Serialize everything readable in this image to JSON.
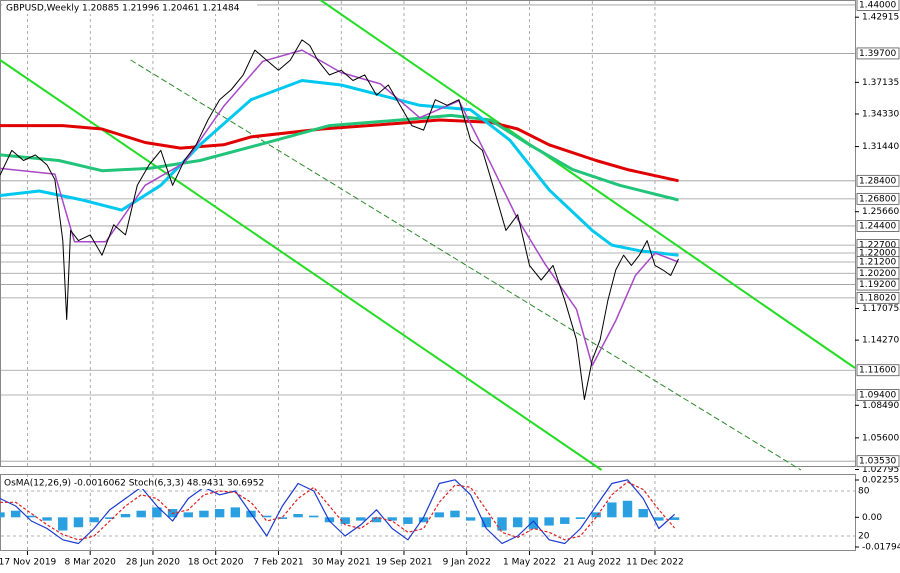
{
  "chart_data": [
    {
      "type": "line",
      "title": "GBPUSD,Weekly  1.20885 1.21996 1.20461 1.21484",
      "xlim": [
        -7,
        211
      ],
      "xticks": [
        {
          "value": 0,
          "label": "17 Nov 2019"
        },
        {
          "value": 16,
          "label": "8 Mar 2020"
        },
        {
          "value": 32,
          "label": "28 Jun 2020"
        },
        {
          "value": 48,
          "label": "18 Oct 2020"
        },
        {
          "value": 64,
          "label": "7 Feb 2021"
        },
        {
          "value": 80,
          "label": "30 May 2021"
        },
        {
          "value": 96,
          "label": "19 Sep 2021"
        },
        {
          "value": 112,
          "label": "9 Jan 2022"
        },
        {
          "value": 128,
          "label": "1 May 2022"
        },
        {
          "value": 144,
          "label": "21 Aug 2022"
        },
        {
          "value": 160,
          "label": "11 Dec 2022"
        }
      ],
      "ylim": [
        1.0275,
        1.4444
      ],
      "yticks": [
        1.42915,
        1.37135,
        {
          "value": 1.3433,
          "label": "1.34330"
        },
        {
          "value": 1.3144,
          "label": "1.31440"
        },
        {
          "value": 1.2566,
          "label": "1.25660"
        },
        1.17075,
        {
          "value": 1.1427,
          "label": "1.14270"
        },
        {
          "value": 1.0849,
          "label": "1.08490"
        },
        {
          "value": 1.056,
          "label": "1.05600"
        },
        1.02795
      ],
      "grid": true,
      "levels": [
        {
          "value": 1.44,
          "label": "1.44000"
        },
        {
          "value": 1.397,
          "label": "1.39700"
        },
        {
          "value": 1.284,
          "label": "1.28400"
        },
        {
          "value": 1.268,
          "label": "1.26800"
        },
        {
          "value": 1.244,
          "label": "1.24400"
        },
        {
          "value": 1.227,
          "label": "1.22700"
        },
        {
          "value": 1.22,
          "label": "1.22000"
        },
        {
          "value": 1.212,
          "label": "1.21200"
        },
        {
          "value": 1.202,
          "label": "1.20200"
        },
        {
          "value": 1.192,
          "label": "1.19200"
        },
        {
          "value": 1.1802,
          "label": "1.18020"
        },
        {
          "value": 1.116,
          "label": "1.11600"
        },
        {
          "value": 1.094,
          "label": "1.09400"
        },
        {
          "value": 1.0353,
          "label": "1.03530"
        }
      ],
      "series": [
        {
          "color": "#e00000",
          "width": 3,
          "x": [
            -7,
            9,
            19,
            30,
            39,
            50,
            57,
            75,
            95,
            105,
            118,
            125,
            133,
            145,
            153,
            166
          ],
          "values": [
            1.333,
            1.333,
            1.33,
            1.318,
            1.313,
            1.316,
            1.323,
            1.33,
            1.335,
            1.338,
            1.336,
            1.33,
            1.316,
            1.302,
            1.294,
            1.284
          ]
        },
        {
          "color": "#22c47a",
          "width": 3,
          "x": [
            -7,
            8,
            19,
            31,
            44,
            59,
            77,
            95,
            108,
            118,
            128,
            139,
            151,
            166
          ],
          "values": [
            1.307,
            1.302,
            1.293,
            1.295,
            1.302,
            1.316,
            1.333,
            1.338,
            1.342,
            1.338,
            1.316,
            1.294,
            1.28,
            1.267
          ]
        },
        {
          "color": "#00c8ee",
          "width": 3,
          "x": [
            -7,
            3,
            14,
            24,
            34,
            44,
            57,
            70,
            80,
            90,
            100,
            113,
            123,
            133,
            144,
            149,
            156,
            166
          ],
          "values": [
            1.271,
            1.275,
            1.267,
            1.258,
            1.28,
            1.316,
            1.356,
            1.373,
            1.369,
            1.36,
            1.351,
            1.347,
            1.32,
            1.276,
            1.24,
            1.227,
            1.222,
            1.218
          ]
        },
        {
          "color": "#a848c8",
          "width": 1.5,
          "x": [
            -7,
            7,
            12,
            20,
            30,
            40,
            50,
            60,
            70,
            80,
            90,
            100,
            110,
            118,
            125,
            132,
            140,
            144,
            150,
            155,
            160,
            166
          ],
          "values": [
            1.295,
            1.29,
            1.23,
            1.23,
            1.28,
            1.3,
            1.35,
            1.39,
            1.4,
            1.38,
            1.37,
            1.34,
            1.355,
            1.3,
            1.25,
            1.21,
            1.17,
            1.12,
            1.16,
            1.2,
            1.22,
            1.212
          ]
        },
        {
          "color": "#000000",
          "width": 1,
          "x": [
            -7,
            -4,
            -1,
            2,
            5,
            7,
            9,
            10,
            11,
            13,
            16,
            19,
            22,
            25,
            28,
            31,
            34,
            37,
            40,
            43,
            46,
            49,
            52,
            55,
            58,
            61,
            64,
            67,
            70,
            72,
            74,
            77,
            80,
            83,
            86,
            89,
            92,
            95,
            98,
            101,
            104,
            107,
            110,
            113,
            116,
            119,
            122,
            125,
            128,
            131,
            134,
            137,
            140,
            142,
            144,
            146,
            148,
            150,
            152,
            154,
            156,
            158,
            160,
            162,
            164,
            166
          ],
          "values": [
            1.289,
            1.311,
            1.302,
            1.307,
            1.298,
            1.285,
            1.231,
            1.161,
            1.24,
            1.231,
            1.236,
            1.218,
            1.245,
            1.236,
            1.28,
            1.298,
            1.311,
            1.28,
            1.302,
            1.316,
            1.338,
            1.356,
            1.365,
            1.378,
            1.4,
            1.391,
            1.382,
            1.391,
            1.409,
            1.404,
            1.391,
            1.378,
            1.382,
            1.373,
            1.378,
            1.36,
            1.369,
            1.351,
            1.333,
            1.329,
            1.356,
            1.351,
            1.356,
            1.32,
            1.311,
            1.276,
            1.24,
            1.254,
            1.209,
            1.196,
            1.209,
            1.178,
            1.143,
            1.09,
            1.125,
            1.143,
            1.178,
            1.205,
            1.218,
            1.209,
            1.218,
            1.231,
            1.209,
            1.205,
            1.2,
            1.21484
          ]
        }
      ],
      "trendlines": [
        {
          "color": "#22dd22",
          "style": "solid",
          "x": [
            -7,
            146.4
          ],
          "values": [
            1.3912,
            1.0275
          ]
        },
        {
          "color": "#22dd22",
          "style": "solid",
          "x": [
            74.7,
            211
          ],
          "values": [
            1.4444,
            1.118
          ]
        },
        {
          "color": "#2a8a2a",
          "style": "dashed",
          "x": [
            26.3,
            197.2
          ],
          "values": [
            1.3912,
            1.0275
          ]
        }
      ]
    },
    {
      "type": "bar",
      "title": "OsMA(12,26,9) -0.0016062 Stoch(6,3,3) 48.9431 30.6952",
      "ylim": [
        -0.0179484,
        0.0225525
      ],
      "yticks": [
        -0.0179484,
        {
          "value": 0,
          "label": "0.00"
        },
        0.0225525
      ],
      "y2lim": [
        0,
        100
      ],
      "y2ticks": [
        20,
        80
      ],
      "series": [
        {
          "type": "bar",
          "color": "#2aa0e0",
          "x": [
            -7,
            -3,
            1,
            5,
            9,
            13,
            17,
            21,
            25,
            29,
            33,
            37,
            41,
            45,
            49,
            53,
            57,
            61,
            65,
            69,
            73,
            77,
            81,
            85,
            89,
            93,
            97,
            101,
            105,
            109,
            113,
            117,
            121,
            125,
            129,
            133,
            137,
            141,
            145,
            149,
            153,
            157,
            161,
            165
          ],
          "values": [
            0.003,
            0.004,
            0.001,
            -0.002,
            -0.008,
            -0.006,
            -0.003,
            -0.001,
            0.002,
            0.004,
            0.006,
            0.005,
            0.003,
            0.004,
            0.005,
            0.006,
            0.004,
            0.001,
            -0.001,
            0.002,
            0.001,
            -0.003,
            -0.004,
            -0.002,
            -0.003,
            -0.002,
            -0.004,
            -0.003,
            0.003,
            0.004,
            -0.002,
            -0.006,
            -0.008,
            -0.006,
            -0.007,
            -0.005,
            -0.004,
            -0.001,
            0.003,
            0.009,
            0.01,
            0.005,
            -0.002,
            -0.0016062
          ]
        },
        {
          "type": "line",
          "axis": "y2",
          "color": "#1a3ad0",
          "style": "solid",
          "x": [
            -7,
            -3,
            1,
            5,
            9,
            13,
            17,
            21,
            25,
            29,
            33,
            37,
            41,
            45,
            49,
            53,
            57,
            61,
            65,
            69,
            73,
            77,
            81,
            85,
            89,
            93,
            97,
            101,
            105,
            109,
            113,
            117,
            121,
            125,
            129,
            133,
            137,
            141,
            145,
            149,
            153,
            157,
            161,
            165
          ],
          "values": [
            70,
            60,
            40,
            30,
            15,
            10,
            30,
            55,
            70,
            85,
            60,
            40,
            70,
            85,
            75,
            80,
            50,
            20,
            60,
            90,
            80,
            40,
            20,
            35,
            55,
            30,
            15,
            45,
            90,
            95,
            75,
            30,
            10,
            20,
            40,
            15,
            10,
            30,
            60,
            90,
            95,
            70,
            30,
            48.9431
          ]
        },
        {
          "type": "line",
          "axis": "y2",
          "color": "#e02020",
          "style": "dashed",
          "x": [
            -7,
            -3,
            1,
            5,
            9,
            13,
            17,
            21,
            25,
            29,
            33,
            37,
            41,
            45,
            49,
            53,
            57,
            61,
            65,
            69,
            73,
            77,
            81,
            85,
            89,
            93,
            97,
            101,
            105,
            109,
            113,
            117,
            121,
            125,
            129,
            133,
            137,
            141,
            145,
            149,
            153,
            157,
            161,
            165
          ],
          "values": [
            65,
            65,
            50,
            35,
            22,
            15,
            20,
            40,
            60,
            75,
            70,
            50,
            55,
            75,
            80,
            78,
            65,
            40,
            45,
            70,
            85,
            60,
            35,
            30,
            45,
            40,
            25,
            30,
            65,
            88,
            85,
            55,
            25,
            18,
            30,
            25,
            15,
            20,
            45,
            75,
            92,
            82,
            55,
            30.6952
          ]
        }
      ]
    }
  ]
}
